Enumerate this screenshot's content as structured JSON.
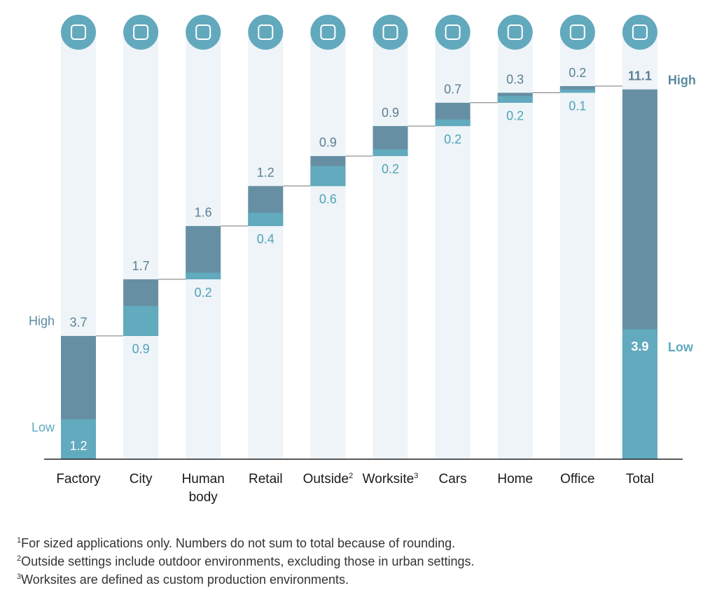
{
  "chart_data": {
    "type": "waterfall",
    "categories": [
      "Factory",
      "City",
      "Human body",
      "Retail",
      "Outside",
      "Worksite",
      "Cars",
      "Home",
      "Office",
      "Total"
    ],
    "category_notes": [
      null,
      null,
      null,
      null,
      "2",
      "3",
      null,
      null,
      null,
      null
    ],
    "series": [
      {
        "name": "High",
        "color": "#668fa3",
        "values": [
          3.7,
          1.7,
          1.6,
          1.2,
          0.9,
          0.9,
          0.7,
          0.3,
          0.2,
          11.1
        ]
      },
      {
        "name": "Low",
        "color": "#62aabe",
        "values": [
          1.2,
          0.9,
          0.2,
          0.4,
          0.6,
          0.2,
          0.2,
          0.2,
          0.1,
          3.9
        ]
      }
    ],
    "footnotes": [
      {
        "mark": "1",
        "text": "For sized applications only. Numbers do not sum to total because of rounding."
      },
      {
        "mark": "2",
        "text": "Outside settings include outdoor environments, excluding those in urban settings."
      },
      {
        "mark": "3",
        "text": "Worksites are defined as custom production environments."
      }
    ]
  }
}
